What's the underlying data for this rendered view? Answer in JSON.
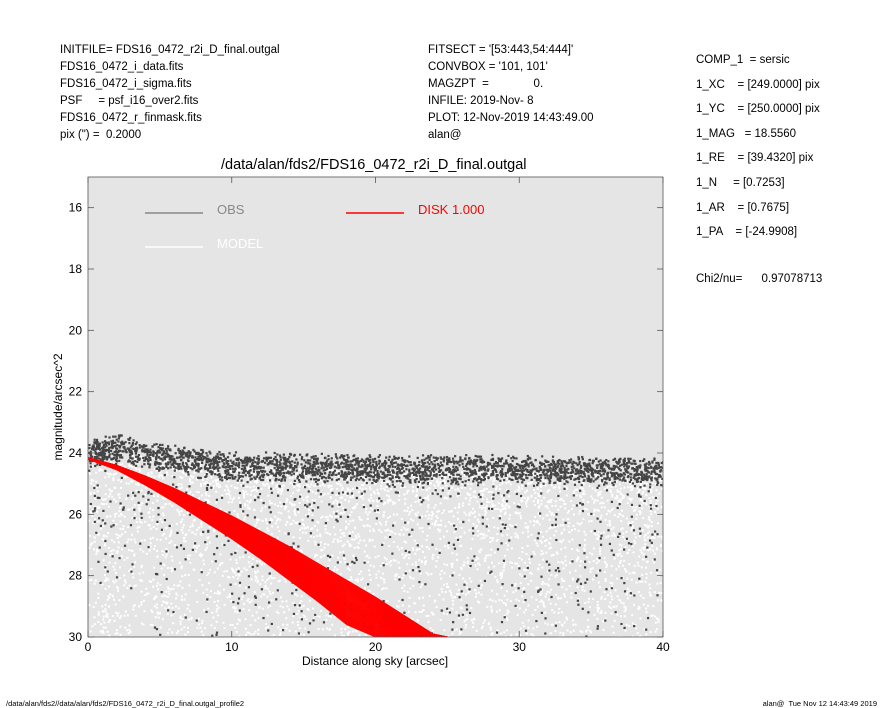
{
  "header_left": [
    "INITFILE= FDS16_0472_r2i_D_final.outgal",
    "FDS16_0472_i_data.fits",
    "FDS16_0472_i_sigma.fits",
    "PSF     = psf_i16_over2.fits",
    "FDS16_0472_r_finmask.fits",
    "pix (\") =  0.2000"
  ],
  "header_mid": [
    "FITSECT = '[53:443,54:444]'",
    "CONVBOX = '101, 101'",
    "MAGZPT  =              0.",
    "INFILE: 2019-Nov- 8",
    "PLOT: 12-Nov-2019 14:43:49.00",
    "alan@"
  ],
  "header_right": [
    "COMP_1  = sersic",
    "1_XC    = [249.0000] pix",
    "1_YC    = [250.0000] pix",
    "1_MAG   = 18.5560",
    "1_RE    = [39.4320] pix",
    "1_N     = [0.7253]",
    "1_AR    = [0.7675]",
    "1_PA    = [-24.9908]"
  ],
  "chi2": "Chi2/nu=      0.97078713",
  "footer_left": "/data/alan/fds2//data/alan/fds2/FDS16_0472_r2i_D_final.outgal_profile2",
  "footer_right": "alan@  Tue Nov 12 14:43:49 2019",
  "chart_data": {
    "type": "scatter",
    "title": "/data/alan/fds2/FDS16_0472_r2i_D_final.outgal",
    "xlabel": "Distance along sky [arcsec]",
    "ylabel": "magnitude/arcsec^2",
    "xlim": [
      0,
      40
    ],
    "ylim": [
      30,
      15
    ],
    "x_ticks": [
      0,
      10,
      20,
      30,
      40
    ],
    "y_ticks": [
      16,
      18,
      20,
      22,
      24,
      26,
      28,
      30
    ],
    "background": "#e5e5e5",
    "grid": false,
    "legend": [
      {
        "label": "OBS",
        "color": "#888888"
      },
      {
        "label": "MODEL",
        "color": "#ffffff"
      },
      {
        "label": "DISK  1.000",
        "color": "#ff0000"
      }
    ],
    "series": [
      {
        "name": "OBS",
        "color": "#444444",
        "description_x_range": [
          0,
          40
        ],
        "band_center": [
          [
            0,
            24.0
          ],
          [
            2,
            23.8
          ],
          [
            5,
            24.1
          ],
          [
            10,
            24.4
          ],
          [
            20,
            24.5
          ],
          [
            30,
            24.5
          ],
          [
            40,
            24.6
          ]
        ],
        "band_halfwidth": 0.35
      },
      {
        "name": "MODEL",
        "color": "#ffffff",
        "band_center": [
          [
            0,
            24.1
          ],
          [
            10,
            24.6
          ],
          [
            20,
            24.8
          ],
          [
            30,
            24.8
          ],
          [
            40,
            24.9
          ]
        ],
        "band_halfwidth_low": 0.2,
        "band_halfwidth_high": 5.5
      },
      {
        "name": "DISK  1.000",
        "color": "#ff0000",
        "x": [
          0,
          2,
          4,
          6,
          8,
          10,
          12,
          14,
          16,
          18,
          20,
          22,
          24,
          25
        ],
        "y_upper": [
          24.15,
          24.4,
          24.75,
          25.15,
          25.6,
          26.05,
          26.55,
          27.05,
          27.6,
          28.15,
          28.7,
          29.3,
          29.9,
          30.0
        ],
        "y_lower": [
          24.2,
          24.55,
          25.05,
          25.6,
          26.2,
          26.8,
          27.45,
          28.15,
          28.85,
          29.6,
          30.0,
          30.0,
          30.0,
          30.0
        ]
      }
    ]
  }
}
